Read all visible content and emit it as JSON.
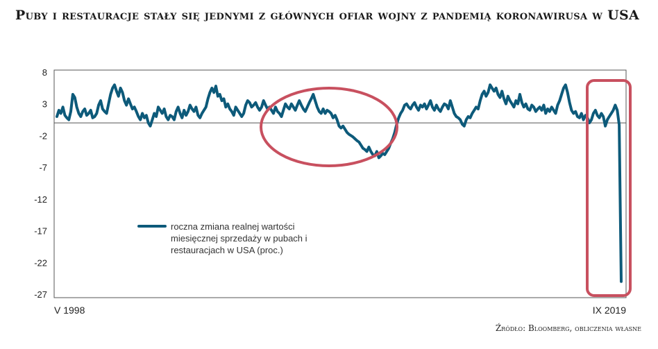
{
  "title": "Puby i restauracje stały się jednymi z głównych ofiar wojny z pandemią koronawirusa w USA",
  "source": "Źródło: Bloomberg, obliczenia własne",
  "chart_data": {
    "type": "line",
    "title": "Puby i restauracje stały się jednymi z głównych ofiar wojny z pandemią koronawirusa w USA",
    "ylim": [
      -27,
      8
    ],
    "yticks": [
      8,
      3,
      -2,
      -7,
      -12,
      -17,
      -22,
      -27
    ],
    "ytick_labels": [
      "8",
      "3",
      "-2",
      "-7",
      "-12",
      "-17",
      "-22",
      "-27"
    ],
    "x_start_label": "V 1998",
    "x_end_label": "IX 2019",
    "grid": false,
    "zero_line": 0,
    "legend_placement": "center-left",
    "series": [
      {
        "name": "roczna zmiana realnej wartości miesięcznej sprzedaży w pubach i restauracjach w USA (proc.)",
        "name_lines": [
          "roczna zmiana realnej wartości",
          "miesięcznej sprzedaży w pubach i",
          "restauracjach w USA (proc.)"
        ],
        "color": "#0d5a7a",
        "values": [
          1.0,
          2.0,
          1.5,
          2.5,
          1.2,
          0.8,
          0.5,
          1.8,
          4.5,
          4.0,
          2.5,
          1.5,
          1.0,
          1.8,
          2.2,
          1.2,
          1.5,
          2.0,
          0.8,
          1.0,
          1.5,
          2.8,
          3.5,
          2.2,
          1.8,
          1.5,
          3.0,
          4.5,
          5.5,
          6.0,
          5.0,
          4.2,
          5.5,
          4.8,
          3.5,
          2.8,
          3.8,
          3.0,
          2.2,
          2.5,
          1.8,
          1.0,
          0.5,
          1.5,
          0.8,
          1.2,
          0.0,
          -0.5,
          0.5,
          1.5,
          1.0,
          2.5,
          2.0,
          1.5,
          2.2,
          1.0,
          0.5,
          1.2,
          1.0,
          0.5,
          1.8,
          2.5,
          1.5,
          0.8,
          2.0,
          1.2,
          1.8,
          2.8,
          2.2,
          1.8,
          2.5,
          1.2,
          0.8,
          1.5,
          2.0,
          2.5,
          3.8,
          4.8,
          5.5,
          4.8,
          5.8,
          4.2,
          4.5,
          3.5,
          3.8,
          2.5,
          3.0,
          2.2,
          1.8,
          1.2,
          2.5,
          2.0,
          1.5,
          1.0,
          1.5,
          2.8,
          3.5,
          3.2,
          2.5,
          2.8,
          3.2,
          2.5,
          2.0,
          2.5,
          3.5,
          2.8,
          2.2,
          2.5,
          2.0,
          1.5,
          2.5,
          1.8,
          1.5,
          1.0,
          2.0,
          3.0,
          2.5,
          2.2,
          3.0,
          2.5,
          2.0,
          2.8,
          3.5,
          2.8,
          2.2,
          1.8,
          2.5,
          3.2,
          3.8,
          4.5,
          3.5,
          2.5,
          1.8,
          1.5,
          2.2,
          1.5,
          2.0,
          1.8,
          1.5,
          0.8,
          1.2,
          0.5,
          -0.5,
          -0.8,
          -0.5,
          -1.0,
          -1.5,
          -1.8,
          -2.0,
          -2.2,
          -2.5,
          -2.8,
          -3.0,
          -3.5,
          -4.0,
          -4.2,
          -4.5,
          -3.8,
          -4.5,
          -5.0,
          -5.2,
          -4.5,
          -5.5,
          -5.2,
          -4.8,
          -5.0,
          -4.5,
          -4.0,
          -3.2,
          -2.5,
          -1.5,
          -0.2,
          0.8,
          1.5,
          2.0,
          2.8,
          3.0,
          2.5,
          2.2,
          2.8,
          3.2,
          2.5,
          2.0,
          2.8,
          2.5,
          3.0,
          2.2,
          2.8,
          3.5,
          2.5,
          2.0,
          2.8,
          2.2,
          1.8,
          2.5,
          3.0,
          2.8,
          2.2,
          3.5,
          2.5,
          1.5,
          1.0,
          0.8,
          0.5,
          -0.2,
          -0.5,
          0.5,
          1.0,
          0.8,
          1.5,
          2.0,
          2.5,
          2.2,
          3.5,
          4.5,
          5.0,
          4.2,
          4.8,
          6.0,
          5.5,
          5.0,
          5.5,
          4.5,
          4.0,
          5.0,
          3.8,
          3.0,
          4.2,
          3.5,
          3.0,
          2.5,
          3.5,
          3.0,
          4.5,
          3.2,
          2.5,
          3.0,
          2.2,
          2.0,
          2.8,
          2.5,
          1.8,
          2.2,
          2.5,
          2.0,
          2.8,
          1.5,
          2.2,
          1.8,
          2.5,
          2.0,
          1.5,
          2.8,
          3.5,
          4.5,
          5.5,
          6.0,
          4.8,
          3.2,
          2.0,
          1.5,
          1.8,
          1.0,
          0.8,
          1.5,
          0.5,
          1.2,
          0.8,
          0.0,
          0.5,
          1.5,
          2.0,
          1.2,
          0.8,
          1.5,
          1.0,
          -0.5,
          0.5,
          1.0,
          1.5,
          2.0,
          2.8,
          2.0,
          -0.3,
          -25.0
        ]
      }
    ],
    "annotations": [
      {
        "type": "ellipse",
        "color": "#c8505f",
        "around": "decline around 2008-2010"
      },
      {
        "type": "rounded-rect",
        "color": "#c8505f",
        "around": "pandemic collapse at end of series"
      }
    ]
  }
}
